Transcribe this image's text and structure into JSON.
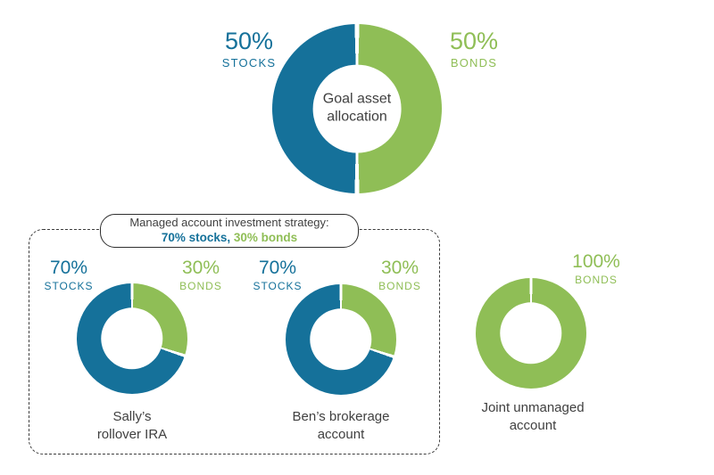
{
  "palette": {
    "stocks_teal": "#15719a",
    "bonds_green": "#8fbe56",
    "text_dark": "#404040"
  },
  "goal": {
    "pct_stocks": "50%",
    "label_stocks": "STOCKS",
    "pct_bonds": "50%",
    "label_bonds": "BONDS",
    "center_line1": "Goal asset",
    "center_line2": "allocation"
  },
  "callout": {
    "line1": "Managed account investment strategy:",
    "stocks_text": "70% stocks,",
    "bonds_text": " 30% bonds"
  },
  "sally": {
    "pct_stocks": "70%",
    "label_stocks": "STOCKS",
    "pct_bonds": "30%",
    "label_bonds": "BONDS",
    "caption_line1": "Sally’s",
    "caption_line2": "rollover IRA"
  },
  "ben": {
    "pct_stocks": "70%",
    "label_stocks": "STOCKS",
    "pct_bonds": "30%",
    "label_bonds": "BONDS",
    "caption_line1": "Ben’s brokerage",
    "caption_line2": "account"
  },
  "joint": {
    "pct_bonds": "100%",
    "label_bonds": "BONDS",
    "caption_line1": "Joint unmanaged",
    "caption_line2": "account"
  },
  "chart_data": [
    {
      "type": "pie",
      "title": "Goal asset allocation",
      "donut": true,
      "labels": [
        "Bonds",
        "Stocks"
      ],
      "values": [
        50,
        50
      ],
      "colors": [
        "#8fbe56",
        "#15719a"
      ],
      "start_angle": "top",
      "direction": "clockwise"
    },
    {
      "type": "pie",
      "title": "Sally’s rollover IRA",
      "donut": true,
      "labels": [
        "Bonds",
        "Stocks"
      ],
      "values": [
        30,
        70
      ],
      "colors": [
        "#8fbe56",
        "#15719a"
      ],
      "start_angle": "top",
      "direction": "clockwise"
    },
    {
      "type": "pie",
      "title": "Ben’s brokerage account",
      "donut": true,
      "labels": [
        "Bonds",
        "Stocks"
      ],
      "values": [
        30,
        70
      ],
      "colors": [
        "#8fbe56",
        "#15719a"
      ],
      "start_angle": "top",
      "direction": "clockwise"
    },
    {
      "type": "pie",
      "title": "Joint unmanaged account",
      "donut": true,
      "labels": [
        "Bonds"
      ],
      "values": [
        100
      ],
      "colors": [
        "#8fbe56"
      ],
      "start_angle": "top",
      "direction": "clockwise"
    }
  ],
  "annotation": "Managed accounts (Sally’s rollover IRA, Ben’s brokerage account) follow strategy 70% stocks / 30% bonds; joint unmanaged account is 100% bonds; goal asset allocation is 50% stocks / 50% bonds"
}
